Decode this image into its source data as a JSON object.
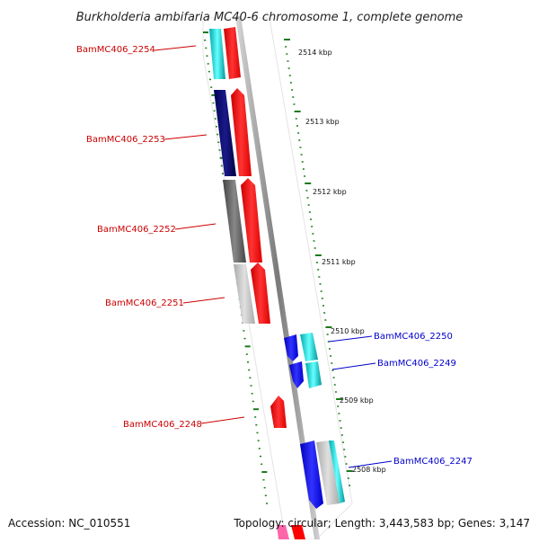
{
  "title": "Burkholderia ambifaria MC40-6 chromosome 1, complete genome",
  "accession": "Accession: NC_010551",
  "topology": "Topology: circular; Length: 3,443,583 bp; Genes: 3,147",
  "colors": {
    "forward_label": "#cc0000",
    "reverse_label": "#0000cc",
    "backbone": "#8a8a8a",
    "tick": "#1a7a1a",
    "red_arrow": "#ff0000",
    "blue_arrow": "#0000ee",
    "cyan": "#00cccc",
    "navy": "#000066",
    "dark_gray": "#555555",
    "light_gray": "#bbbbbb"
  },
  "scale_labels": [
    "2514 kbp",
    "2513 kbp",
    "2512 kbp",
    "2511 kbp",
    "2510 kbp",
    "2509 kbp",
    "2508 kbp"
  ],
  "genes_left": [
    "BamMC406_2254",
    "BamMC406_2253",
    "BamMC406_2252",
    "BamMC406_2251",
    "BamMC406_2248"
  ],
  "genes_right": [
    "BamMC406_2250",
    "BamMC406_2249",
    "BamMC406_2247"
  ]
}
